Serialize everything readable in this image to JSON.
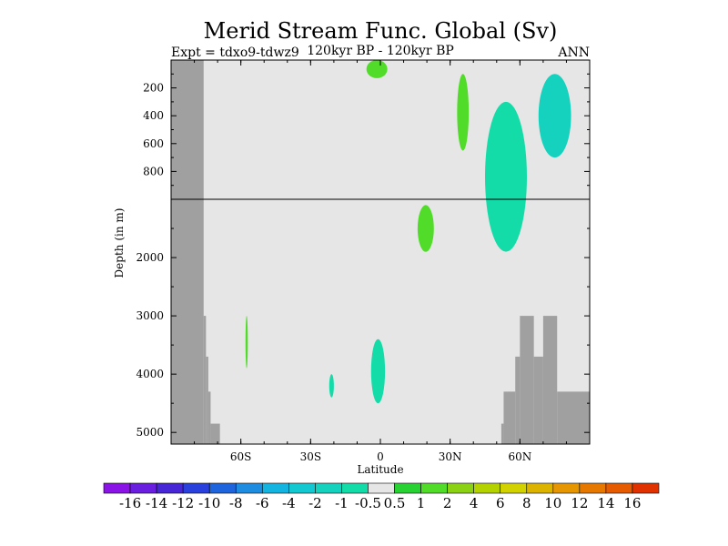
{
  "chart_data": {
    "type": "heatmap",
    "title": "Merid Stream Func. Global (Sv)",
    "subtitle_left": "Expt = tdxo9-tdwz9",
    "subtitle_center": "120kyr BP - 120kyr BP",
    "subtitle_right": "ANN",
    "xlabel": "Latitude",
    "ylabel": "Depth (in m)",
    "xlim": [
      -90,
      90
    ],
    "x_ticks": [
      {
        "value": -60,
        "label": "60S"
      },
      {
        "value": -30,
        "label": "30S"
      },
      {
        "value": 0,
        "label": "0"
      },
      {
        "value": 30,
        "label": "30N"
      },
      {
        "value": 60,
        "label": "60N"
      }
    ],
    "y_axis": {
      "upper_range_m": [
        0,
        1000
      ],
      "lower_range_m": [
        1000,
        5200
      ],
      "upper_ticks": [
        {
          "value": 200,
          "label": "200"
        },
        {
          "value": 400,
          "label": "400"
        },
        {
          "value": 600,
          "label": "600"
        },
        {
          "value": 800,
          "label": "800"
        }
      ],
      "lower_ticks": [
        {
          "value": 2000,
          "label": "2000"
        },
        {
          "value": 3000,
          "label": "3000"
        },
        {
          "value": 4000,
          "label": "4000"
        },
        {
          "value": 5000,
          "label": "5000"
        }
      ]
    },
    "background_value_range": [
      -0.5,
      0.5
    ],
    "colorbar": {
      "labels": [
        "-16",
        "-14",
        "-12",
        "-10",
        "-8",
        "-6",
        "-4",
        "-2",
        "-1",
        "-0.5",
        "0.5",
        "1",
        "2",
        "4",
        "6",
        "8",
        "10",
        "12",
        "14",
        "16"
      ],
      "colors": [
        "#8a14e6",
        "#6a1ee0",
        "#4626d6",
        "#2a40dc",
        "#1e64dc",
        "#1e8ce0",
        "#14b4e0",
        "#14c8d2",
        "#14d2be",
        "#14dca8",
        "#e6e6e6",
        "#28d232",
        "#50dc28",
        "#8cd214",
        "#b4d200",
        "#d2d200",
        "#dcb400",
        "#e69600",
        "#e67800",
        "#e65a00",
        "#e03200"
      ]
    },
    "topography": {
      "color": "#a0a0a0",
      "south_wall": [
        {
          "lat_from": -90,
          "lat_to": -76,
          "depth_top": 0,
          "depth_bottom": 5200
        },
        {
          "lat_from": -76,
          "lat_to": -75,
          "depth_top": 3000,
          "depth_bottom": 5200
        },
        {
          "lat_from": -75,
          "lat_to": -74,
          "depth_top": 3700,
          "depth_bottom": 5200
        },
        {
          "lat_from": -74,
          "lat_to": -73,
          "depth_top": 4300,
          "depth_bottom": 5200
        },
        {
          "lat_from": -73,
          "lat_to": -69,
          "depth_top": 4850,
          "depth_bottom": 5200
        }
      ],
      "north_floor": [
        {
          "lat_from": 52,
          "lat_to": 53,
          "depth_top": 4850,
          "depth_bottom": 5200
        },
        {
          "lat_from": 53,
          "lat_to": 58,
          "depth_top": 4300,
          "depth_bottom": 5200
        },
        {
          "lat_from": 58,
          "lat_to": 60,
          "depth_top": 3700,
          "depth_bottom": 5200
        },
        {
          "lat_from": 60,
          "lat_to": 66,
          "depth_top": 3000,
          "depth_bottom": 5200
        },
        {
          "lat_from": 66,
          "lat_to": 70,
          "depth_top": 3700,
          "depth_bottom": 5200
        },
        {
          "lat_from": 70,
          "lat_to": 76,
          "depth_top": 3000,
          "depth_bottom": 5200
        },
        {
          "lat_from": 76,
          "lat_to": 90,
          "depth_top": 4300,
          "depth_bottom": 5200
        }
      ]
    },
    "anomaly_regions": [
      {
        "value": -1,
        "lat_from": 45,
        "lat_to": 63,
        "depth_top": 300,
        "depth_bottom": 1900
      },
      {
        "value": -2,
        "lat_from": 68,
        "lat_to": 82,
        "depth_top": 100,
        "depth_bottom": 700
      },
      {
        "value": 1,
        "lat_from": 16,
        "lat_to": 23,
        "depth_top": 1100,
        "depth_bottom": 1900
      },
      {
        "value": 1,
        "lat_from": 33,
        "lat_to": 38,
        "depth_top": 100,
        "depth_bottom": 650
      },
      {
        "value": -1,
        "lat_from": -4,
        "lat_to": 2,
        "depth_top": 3400,
        "depth_bottom": 4500
      },
      {
        "value": 1,
        "lat_from": -6,
        "lat_to": 3,
        "depth_top": 0,
        "depth_bottom": 130
      },
      {
        "value": 1,
        "lat_from": -58,
        "lat_to": -57,
        "depth_top": 3000,
        "depth_bottom": 3900
      },
      {
        "value": -1,
        "lat_from": -22,
        "lat_to": -20,
        "depth_top": 4000,
        "depth_bottom": 4400
      }
    ]
  }
}
